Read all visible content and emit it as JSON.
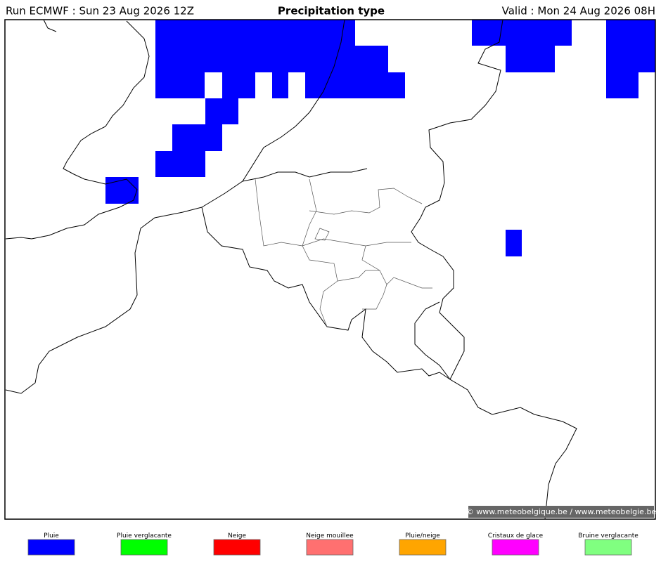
{
  "header": {
    "run": "Run ECMWF : Sun 23 Aug 2026 12Z",
    "title": "Precipitation type",
    "valid": "Valid : Mon 24 Aug 2026 08H"
  },
  "watermark": "© www.meteobelgique.be / www.meteobelgie.be",
  "legend": [
    {
      "label": "Pluie",
      "color": "#0000ff"
    },
    {
      "label": "Pluie verglacante",
      "color": "#00ff00"
    },
    {
      "label": "Neige",
      "color": "#ff0000"
    },
    {
      "label": "Neige mouillee",
      "color": "#ff7070"
    },
    {
      "label": "Pluie/neige",
      "color": "#ffa500"
    },
    {
      "label": "Cristaux de glace",
      "color": "#ff00ff"
    },
    {
      "label": "Bruine verglacante",
      "color": "#80ff80"
    }
  ]
}
